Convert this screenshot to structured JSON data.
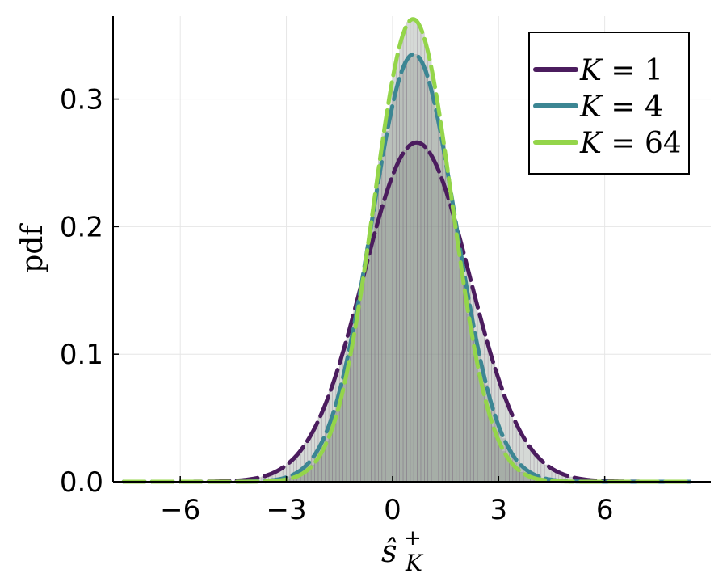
{
  "chart_data": {
    "type": "line",
    "title": "",
    "xlabel": "ŝ",
    "xlabel_superscript": "+",
    "xlabel_subscript": "K",
    "ylabel": "pdf",
    "xlim": [
      -7.9,
      9.0
    ],
    "ylim": [
      0.0,
      0.365
    ],
    "xticks": [
      -6,
      -3,
      0,
      3,
      6
    ],
    "xtick_labels": [
      "−6",
      "−3",
      "0",
      "3",
      "6"
    ],
    "yticks": [
      0.0,
      0.1,
      0.2,
      0.3
    ],
    "ytick_labels": [
      "0.0",
      "0.1",
      "0.2",
      "0.3"
    ],
    "grid": true,
    "legend_position": "top-right",
    "histogram_fill": "#7f8c82",
    "histogram_edge": "#8e7f93",
    "series": [
      {
        "name": "K = 1",
        "legend_var": "K",
        "legend_val": "1",
        "color": "#4b1c5e",
        "mean": 0.68,
        "sd": 1.5
      },
      {
        "name": "K = 4",
        "legend_var": "K",
        "legend_val": "4",
        "color": "#3c8693",
        "mean": 0.6,
        "sd": 1.19
      },
      {
        "name": "K = 64",
        "legend_var": "K",
        "legend_val": "64",
        "color": "#94d54a",
        "mean": 0.58,
        "sd": 1.1
      }
    ],
    "curve_x_range": [
      -7.6,
      8.4
    ]
  }
}
